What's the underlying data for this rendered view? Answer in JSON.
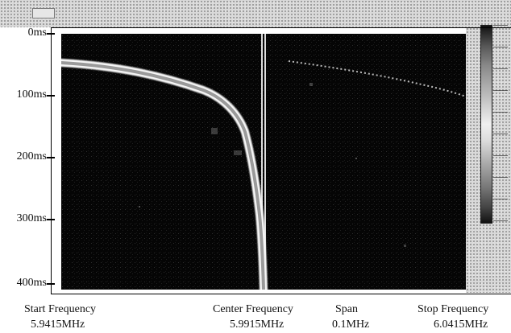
{
  "axis": {
    "time_labels": [
      "0ms",
      "100ms",
      "200ms",
      "300ms",
      "400ms"
    ]
  },
  "footer": {
    "start_label": "Start Frequency",
    "start_value": "5.9415MHz",
    "center_label": "Center Frequency",
    "center_value": "5.9915MHz",
    "span_label": "Span",
    "span_value": "0.1MHz",
    "stop_label": "Stop Frequency",
    "stop_value": "6.0415MHz"
  },
  "colors": {
    "background": "#ffffff",
    "plot_background": "#050505",
    "trace": "#f7f7f7"
  }
}
